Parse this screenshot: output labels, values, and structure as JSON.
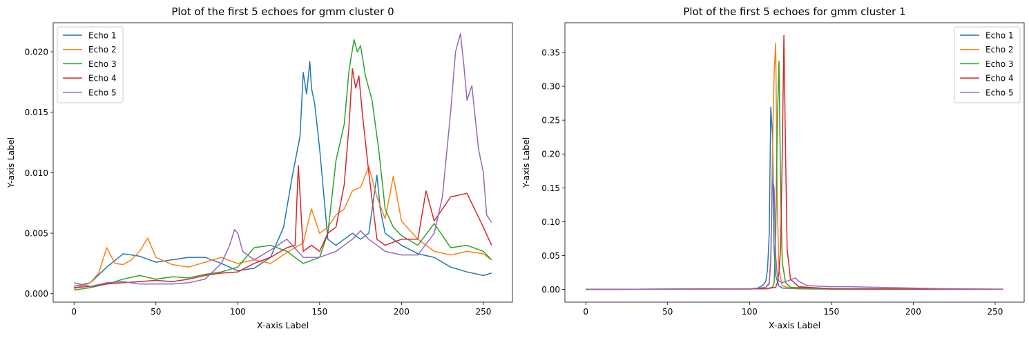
{
  "chart_data": [
    {
      "type": "line",
      "title": "Plot of the first 5 echoes for gmm cluster 0",
      "xlabel": "X-axis Label",
      "ylabel": "Y-axis Label",
      "xlim": [
        -12.75,
        267.75
      ],
      "ylim": [
        -0.0007,
        0.0224
      ],
      "xticks": [
        0,
        50,
        100,
        150,
        200,
        250
      ],
      "xtick_labels": [
        "0",
        "50",
        "100",
        "150",
        "200",
        "250"
      ],
      "yticks": [
        0.0,
        0.005,
        0.01,
        0.015,
        0.02
      ],
      "ytick_labels": [
        "0.000",
        "0.005",
        "0.010",
        "0.015",
        "0.020"
      ],
      "grid": false,
      "legend_position": "upper left",
      "series": [
        {
          "name": "Echo 1",
          "color": "#1f77b4",
          "x": [
            0,
            10,
            20,
            30,
            40,
            50,
            60,
            70,
            80,
            90,
            100,
            110,
            120,
            128,
            133,
            138,
            140,
            142,
            144,
            145,
            147,
            150,
            155,
            160,
            165,
            170,
            175,
            180,
            185,
            187,
            190,
            200,
            210,
            220,
            230,
            240,
            250,
            255
          ],
          "y": [
            0.0006,
            0.0009,
            0.0022,
            0.0033,
            0.0031,
            0.0026,
            0.0028,
            0.003,
            0.003,
            0.0025,
            0.0019,
            0.0021,
            0.003,
            0.0055,
            0.0095,
            0.013,
            0.0183,
            0.0165,
            0.0192,
            0.017,
            0.0157,
            0.012,
            0.0045,
            0.004,
            0.0045,
            0.005,
            0.0045,
            0.005,
            0.0098,
            0.007,
            0.005,
            0.004,
            0.0033,
            0.003,
            0.0022,
            0.0018,
            0.0015,
            0.0017
          ]
        },
        {
          "name": "Echo 2",
          "color": "#ff7f0e",
          "x": [
            0,
            10,
            15,
            20,
            25,
            30,
            35,
            40,
            45,
            50,
            60,
            70,
            80,
            90,
            100,
            110,
            120,
            130,
            140,
            145,
            150,
            155,
            160,
            165,
            170,
            175,
            180,
            185,
            190,
            195,
            200,
            210,
            220,
            230,
            240,
            250,
            255
          ],
          "y": [
            0.0004,
            0.0009,
            0.0017,
            0.0038,
            0.0025,
            0.0024,
            0.0028,
            0.0035,
            0.0046,
            0.003,
            0.0024,
            0.0022,
            0.0026,
            0.003,
            0.0025,
            0.0028,
            0.0025,
            0.0034,
            0.0042,
            0.007,
            0.005,
            0.0055,
            0.0065,
            0.007,
            0.0085,
            0.0088,
            0.0105,
            0.008,
            0.0062,
            0.0097,
            0.006,
            0.0045,
            0.0035,
            0.0032,
            0.0035,
            0.0033,
            0.0028
          ]
        },
        {
          "name": "Echo 3",
          "color": "#2ca02c",
          "x": [
            0,
            10,
            20,
            30,
            40,
            50,
            60,
            70,
            80,
            90,
            100,
            110,
            120,
            130,
            140,
            150,
            155,
            160,
            165,
            168,
            171,
            173,
            175,
            178,
            182,
            186,
            190,
            195,
            200,
            210,
            220,
            230,
            240,
            250,
            255
          ],
          "y": [
            0.0003,
            0.0005,
            0.0008,
            0.0012,
            0.0015,
            0.0012,
            0.0014,
            0.0013,
            0.0016,
            0.0018,
            0.0022,
            0.0038,
            0.004,
            0.0035,
            0.0025,
            0.003,
            0.005,
            0.011,
            0.014,
            0.0185,
            0.021,
            0.02,
            0.0205,
            0.018,
            0.016,
            0.012,
            0.007,
            0.0055,
            0.0048,
            0.004,
            0.0058,
            0.0038,
            0.004,
            0.0035,
            0.0028
          ]
        },
        {
          "name": "Echo 4",
          "color": "#d62728",
          "x": [
            0,
            10,
            20,
            30,
            40,
            50,
            60,
            70,
            80,
            90,
            100,
            110,
            120,
            130,
            135,
            137,
            140,
            145,
            150,
            155,
            160,
            165,
            168,
            170,
            172,
            174,
            176,
            180,
            185,
            190,
            200,
            210,
            215,
            220,
            225,
            230,
            240,
            250,
            255
          ],
          "y": [
            0.0005,
            0.0006,
            0.0008,
            0.0009,
            0.001,
            0.0011,
            0.001,
            0.0012,
            0.0015,
            0.0017,
            0.0018,
            0.0025,
            0.003,
            0.0038,
            0.004,
            0.0106,
            0.0035,
            0.004,
            0.0035,
            0.005,
            0.0055,
            0.009,
            0.014,
            0.0186,
            0.017,
            0.018,
            0.015,
            0.01,
            0.0045,
            0.004,
            0.0045,
            0.0045,
            0.0085,
            0.006,
            0.007,
            0.008,
            0.0083,
            0.0055,
            0.004
          ]
        },
        {
          "name": "Echo 5",
          "color": "#9467bd",
          "x": [
            0,
            10,
            20,
            30,
            40,
            50,
            60,
            70,
            80,
            90,
            95,
            98,
            100,
            103,
            110,
            120,
            130,
            140,
            150,
            160,
            170,
            175,
            180,
            190,
            200,
            210,
            220,
            225,
            230,
            233,
            236,
            238,
            240,
            243,
            247,
            250,
            252,
            255
          ],
          "y": [
            0.0009,
            0.0006,
            0.0009,
            0.001,
            0.0008,
            0.0008,
            0.0008,
            0.0009,
            0.0012,
            0.0025,
            0.004,
            0.0053,
            0.005,
            0.0035,
            0.0028,
            0.0036,
            0.0045,
            0.003,
            0.003,
            0.0035,
            0.0045,
            0.0052,
            0.0045,
            0.0035,
            0.0032,
            0.0032,
            0.005,
            0.008,
            0.015,
            0.02,
            0.0215,
            0.019,
            0.016,
            0.0172,
            0.012,
            0.01,
            0.0065,
            0.0059
          ]
        }
      ]
    },
    {
      "type": "line",
      "title": "Plot of the first 5 echoes for gmm cluster 1",
      "xlabel": "X-axis Label",
      "ylabel": "Y-axis Label",
      "xlim": [
        -12.75,
        267.75
      ],
      "ylim": [
        -0.0188,
        0.3938
      ],
      "xticks": [
        0,
        50,
        100,
        150,
        200,
        250
      ],
      "xtick_labels": [
        "0",
        "50",
        "100",
        "150",
        "200",
        "250"
      ],
      "yticks": [
        0.0,
        0.05,
        0.1,
        0.15,
        0.2,
        0.25,
        0.3,
        0.35
      ],
      "ytick_labels": [
        "0.00",
        "0.05",
        "0.10",
        "0.15",
        "0.20",
        "0.25",
        "0.30",
        "0.35"
      ],
      "grid": false,
      "legend_position": "upper right",
      "series": [
        {
          "name": "Echo 1",
          "color": "#1f77b4",
          "x": [
            0,
            100,
            105,
            108,
            110,
            111,
            112,
            113,
            114,
            115,
            116,
            118,
            120,
            130,
            150,
            200,
            255
          ],
          "y": [
            0,
            0.0005,
            0.002,
            0.006,
            0.012,
            0.03,
            0.08,
            0.269,
            0.23,
            0.06,
            0.02,
            0.005,
            0.002,
            0.001,
            0.0005,
            0.0003,
            0.0002
          ]
        },
        {
          "name": "Echo 2",
          "color": "#ff7f0e",
          "x": [
            0,
            100,
            110,
            112,
            113,
            114,
            115,
            116,
            117,
            118,
            120,
            125,
            150,
            200,
            255
          ],
          "y": [
            0,
            0.0005,
            0.003,
            0.01,
            0.05,
            0.2,
            0.318,
            0.364,
            0.12,
            0.03,
            0.005,
            0.002,
            0.001,
            0.0005,
            0.0002
          ]
        },
        {
          "name": "Echo 3",
          "color": "#2ca02c",
          "x": [
            0,
            110,
            114,
            115,
            116,
            117,
            118,
            119,
            120,
            122,
            125,
            150,
            200,
            255
          ],
          "y": [
            0,
            0.001,
            0.003,
            0.01,
            0.08,
            0.25,
            0.337,
            0.15,
            0.04,
            0.01,
            0.003,
            0.001,
            0.0005,
            0.0002
          ]
        },
        {
          "name": "Echo 4",
          "color": "#d62728",
          "x": [
            0,
            110,
            116,
            117,
            118,
            119,
            120,
            121,
            122,
            123,
            125,
            130,
            150,
            200,
            255
          ],
          "y": [
            0,
            0.001,
            0.003,
            0.01,
            0.025,
            0.06,
            0.2,
            0.375,
            0.2,
            0.06,
            0.015,
            0.004,
            0.001,
            0.0005,
            0.0002
          ]
        },
        {
          "name": "Echo 5",
          "color": "#9467bd",
          "x": [
            0,
            100,
            110,
            112,
            113,
            114,
            115,
            116,
            117,
            118,
            120,
            125,
            128,
            130,
            135,
            140,
            150,
            160,
            180,
            200,
            220,
            255
          ],
          "y": [
            0,
            0.001,
            0.003,
            0.008,
            0.04,
            0.163,
            0.15,
            0.05,
            0.02,
            0.012,
            0.01,
            0.014,
            0.017,
            0.012,
            0.006,
            0.005,
            0.004,
            0.004,
            0.003,
            0.002,
            0.001,
            0.0005
          ]
        }
      ]
    }
  ]
}
